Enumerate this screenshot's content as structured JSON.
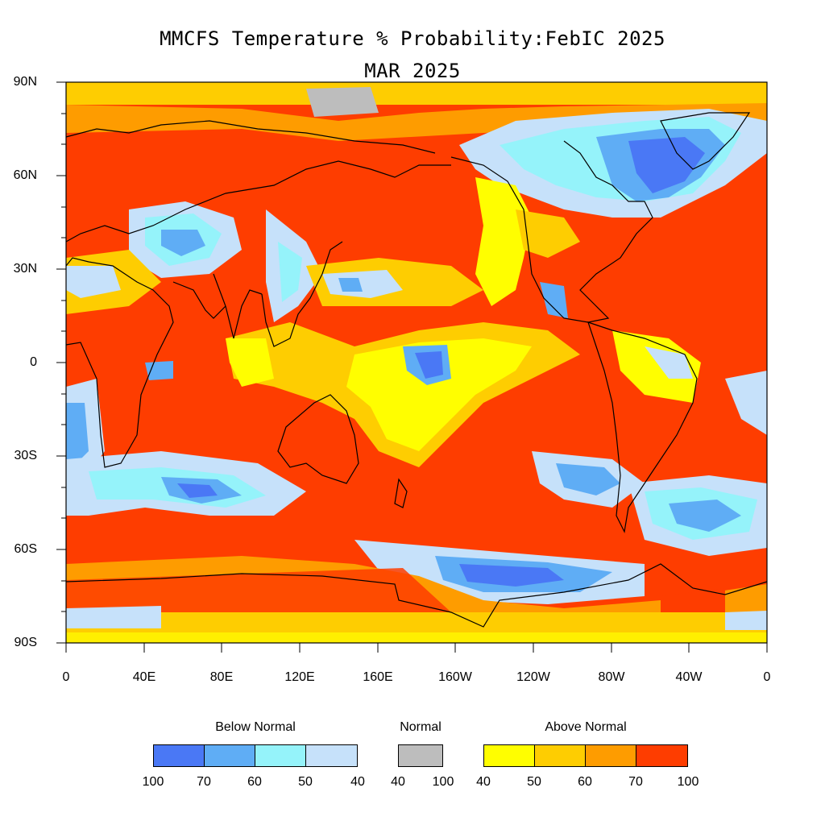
{
  "title": "MMCFS Temperature % Probability:FebIC 2025",
  "subtitle": "MAR 2025",
  "y_labels": [
    "90N",
    "60N",
    "30N",
    "0",
    "30S",
    "60S",
    "90S"
  ],
  "x_labels": [
    "0",
    "40E",
    "80E",
    "120E",
    "160E",
    "160W",
    "120W",
    "80W",
    "40W",
    "0"
  ],
  "legend": {
    "below": {
      "label": "Below Normal",
      "colors": [
        "#4a78f5",
        "#5fadf5",
        "#95f3fa",
        "#c6e1fa"
      ],
      "ticks": [
        "100",
        "70",
        "60",
        "50",
        "40"
      ]
    },
    "normal": {
      "label": "Normal",
      "colors": [
        "#bdbdbd"
      ],
      "ticks": [
        "40",
        "100"
      ]
    },
    "above": {
      "label": "Above Normal",
      "colors": [
        "#fffe00",
        "#fecd01",
        "#fe9c00",
        "#fe3d00"
      ],
      "ticks": [
        "40",
        "50",
        "60",
        "70",
        "100"
      ]
    }
  },
  "palette": {
    "land_line": "#000000",
    "dominant_above": "#fe3d00"
  }
}
